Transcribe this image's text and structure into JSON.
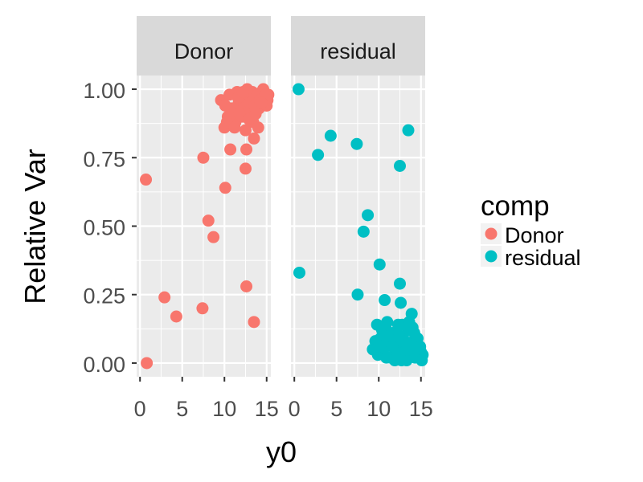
{
  "chart_data": {
    "type": "scatter",
    "xlabel": "y0",
    "ylabel": "Relative Var",
    "xlim": [
      -0.4,
      15.5
    ],
    "ylim": [
      -0.05,
      1.05
    ],
    "x_ticks": [
      0,
      5,
      10,
      15
    ],
    "x_tick_labels": [
      "0",
      "5",
      "10",
      "15"
    ],
    "y_ticks": [
      0,
      0.25,
      0.5,
      0.75,
      1
    ],
    "y_tick_labels": [
      "0.00",
      "0.25",
      "0.50",
      "0.75",
      "1.00"
    ],
    "grid": true,
    "legend": {
      "title": "comp",
      "placement": "right",
      "entries": [
        {
          "label": "Donor",
          "color": "#F8766D"
        },
        {
          "label": "residual",
          "color": "#00BFC4"
        }
      ]
    },
    "panels": [
      {
        "strip": "Donor",
        "color": "#F8766D",
        "points": [
          {
            "x": 0.7,
            "y": 0.67
          },
          {
            "x": 0.8,
            "y": 0.0
          },
          {
            "x": 2.9,
            "y": 0.24
          },
          {
            "x": 4.3,
            "y": 0.17
          },
          {
            "x": 7.4,
            "y": 0.2
          },
          {
            "x": 7.5,
            "y": 0.75
          },
          {
            "x": 8.1,
            "y": 0.52
          },
          {
            "x": 8.7,
            "y": 0.46
          },
          {
            "x": 10.1,
            "y": 0.64
          },
          {
            "x": 10.7,
            "y": 0.78
          },
          {
            "x": 12.5,
            "y": 0.71
          },
          {
            "x": 12.6,
            "y": 0.28
          },
          {
            "x": 12.6,
            "y": 0.78
          },
          {
            "x": 13.5,
            "y": 0.15
          },
          {
            "x": 13.5,
            "y": 0.82
          },
          {
            "x": 14.0,
            "y": 0.86
          },
          {
            "x": 10.0,
            "y": 0.86
          },
          {
            "x": 10.4,
            "y": 0.9
          },
          {
            "x": 10.9,
            "y": 0.93
          },
          {
            "x": 11.3,
            "y": 0.88
          },
          {
            "x": 11.7,
            "y": 0.95
          },
          {
            "x": 12.1,
            "y": 0.9
          },
          {
            "x": 12.5,
            "y": 0.85
          },
          {
            "x": 12.8,
            "y": 0.97
          },
          {
            "x": 13.1,
            "y": 0.92
          },
          {
            "x": 13.4,
            "y": 0.88
          },
          {
            "x": 13.8,
            "y": 0.96
          },
          {
            "x": 14.1,
            "y": 0.93
          },
          {
            "x": 14.4,
            "y": 0.99
          },
          {
            "x": 14.7,
            "y": 0.97
          },
          {
            "x": 15.0,
            "y": 0.94
          },
          {
            "x": 15.2,
            "y": 0.98
          },
          {
            "x": 9.6,
            "y": 0.96
          },
          {
            "x": 10.1,
            "y": 0.94
          },
          {
            "x": 10.6,
            "y": 0.98
          },
          {
            "x": 11.0,
            "y": 0.91
          },
          {
            "x": 11.5,
            "y": 0.99
          },
          {
            "x": 11.9,
            "y": 0.96
          },
          {
            "x": 12.3,
            "y": 0.93
          },
          {
            "x": 12.7,
            "y": 1.0
          },
          {
            "x": 13.0,
            "y": 0.95
          },
          {
            "x": 13.3,
            "y": 0.99
          },
          {
            "x": 13.6,
            "y": 0.94
          },
          {
            "x": 13.9,
            "y": 0.98
          },
          {
            "x": 14.2,
            "y": 0.96
          },
          {
            "x": 14.6,
            "y": 1.0
          },
          {
            "x": 14.9,
            "y": 0.98
          },
          {
            "x": 15.1,
            "y": 0.96
          },
          {
            "x": 10.3,
            "y": 0.88
          },
          {
            "x": 11.2,
            "y": 0.86
          },
          {
            "x": 11.8,
            "y": 0.91
          },
          {
            "x": 12.9,
            "y": 0.89
          },
          {
            "x": 13.7,
            "y": 0.91
          },
          {
            "x": 14.4,
            "y": 0.95
          },
          {
            "x": 11.6,
            "y": 0.97
          },
          {
            "x": 12.2,
            "y": 0.99
          }
        ]
      },
      {
        "strip": "residual",
        "color": "#00BFC4",
        "points": [
          {
            "x": 0.5,
            "y": 1.0
          },
          {
            "x": 0.6,
            "y": 0.33
          },
          {
            "x": 2.8,
            "y": 0.76
          },
          {
            "x": 4.3,
            "y": 0.83
          },
          {
            "x": 7.4,
            "y": 0.8
          },
          {
            "x": 7.5,
            "y": 0.25
          },
          {
            "x": 8.2,
            "y": 0.48
          },
          {
            "x": 8.7,
            "y": 0.54
          },
          {
            "x": 10.1,
            "y": 0.36
          },
          {
            "x": 10.7,
            "y": 0.23
          },
          {
            "x": 12.5,
            "y": 0.72
          },
          {
            "x": 12.5,
            "y": 0.29
          },
          {
            "x": 13.5,
            "y": 0.85
          },
          {
            "x": 12.6,
            "y": 0.22
          },
          {
            "x": 13.9,
            "y": 0.18
          },
          {
            "x": 9.3,
            "y": 0.05
          },
          {
            "x": 9.8,
            "y": 0.14
          },
          {
            "x": 10.2,
            "y": 0.09
          },
          {
            "x": 10.5,
            "y": 0.04
          },
          {
            "x": 10.8,
            "y": 0.13
          },
          {
            "x": 11.1,
            "y": 0.07
          },
          {
            "x": 11.4,
            "y": 0.02
          },
          {
            "x": 11.7,
            "y": 0.11
          },
          {
            "x": 12.0,
            "y": 0.05
          },
          {
            "x": 12.3,
            "y": 0.14
          },
          {
            "x": 12.6,
            "y": 0.03
          },
          {
            "x": 12.9,
            "y": 0.09
          },
          {
            "x": 13.2,
            "y": 0.06
          },
          {
            "x": 13.5,
            "y": 0.12
          },
          {
            "x": 13.8,
            "y": 0.03
          },
          {
            "x": 14.1,
            "y": 0.08
          },
          {
            "x": 14.4,
            "y": 0.05
          },
          {
            "x": 14.7,
            "y": 0.02
          },
          {
            "x": 15.0,
            "y": 0.04
          },
          {
            "x": 15.2,
            "y": 0.03
          },
          {
            "x": 9.9,
            "y": 0.03
          },
          {
            "x": 10.4,
            "y": 0.12
          },
          {
            "x": 10.9,
            "y": 0.02
          },
          {
            "x": 11.3,
            "y": 0.1
          },
          {
            "x": 11.9,
            "y": 0.01
          },
          {
            "x": 12.2,
            "y": 0.08
          },
          {
            "x": 12.8,
            "y": 0.14
          },
          {
            "x": 13.3,
            "y": 0.01
          },
          {
            "x": 13.7,
            "y": 0.07
          },
          {
            "x": 14.0,
            "y": 0.13
          },
          {
            "x": 14.3,
            "y": 0.02
          },
          {
            "x": 14.6,
            "y": 0.09
          },
          {
            "x": 14.9,
            "y": 0.06
          },
          {
            "x": 15.1,
            "y": 0.01
          },
          {
            "x": 11.0,
            "y": 0.15
          },
          {
            "x": 11.6,
            "y": 0.06
          },
          {
            "x": 12.4,
            "y": 0.1
          },
          {
            "x": 13.0,
            "y": 0.04
          },
          {
            "x": 13.6,
            "y": 0.15
          },
          {
            "x": 14.2,
            "y": 0.11
          },
          {
            "x": 9.6,
            "y": 0.08
          },
          {
            "x": 10.0,
            "y": 0.06
          },
          {
            "x": 12.7,
            "y": 0.01
          }
        ]
      }
    ]
  }
}
